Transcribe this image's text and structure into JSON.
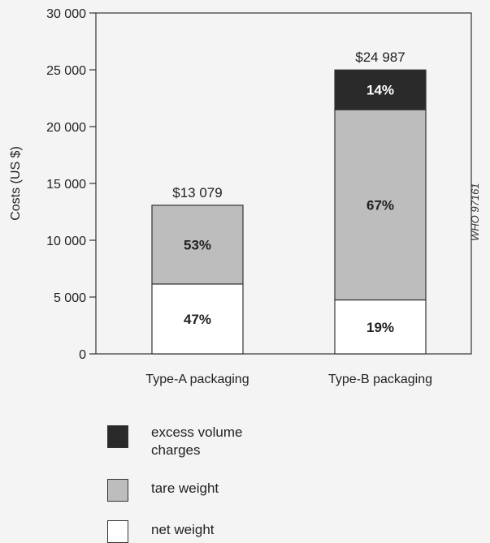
{
  "chart_data": {
    "type": "bar",
    "stacked": true,
    "categories": [
      "Type-A packaging",
      "Type-B packaging"
    ],
    "ylabel": "Costs (US $)",
    "ylim": [
      0,
      30000
    ],
    "yticks": [
      0,
      5000,
      10000,
      15000,
      20000,
      25000,
      30000
    ],
    "ytick_labels": [
      "0",
      "5 000",
      "10 000",
      "15 000",
      "20 000",
      "25 000",
      "30 000"
    ],
    "totals": [
      13079,
      24987
    ],
    "total_labels": [
      "$13 079",
      "$24 987"
    ],
    "series": [
      {
        "name": "net weight",
        "color": "#ffffff",
        "values": [
          6147,
          4748
        ],
        "labels": [
          "47%",
          "19%"
        ],
        "label_color": "#222222"
      },
      {
        "name": "tare weight",
        "color": "#bdbdbd",
        "values": [
          6932,
          16741
        ],
        "labels": [
          "53%",
          "67%"
        ],
        "label_color": "#222222"
      },
      {
        "name": "excess volume charges",
        "color": "#2a2a2a",
        "values": [
          0,
          3498
        ],
        "labels": [
          "",
          "14%"
        ],
        "label_color": "#ffffff"
      }
    ],
    "grid": false
  },
  "legend": {
    "items": [
      {
        "lines": [
          "excess volume",
          "charges"
        ],
        "color": "#2a2a2a"
      },
      {
        "lines": [
          "tare weight"
        ],
        "color": "#bdbdbd"
      },
      {
        "lines": [
          "net weight"
        ],
        "color": "#ffffff"
      }
    ]
  },
  "watermark": "WHO 97161"
}
